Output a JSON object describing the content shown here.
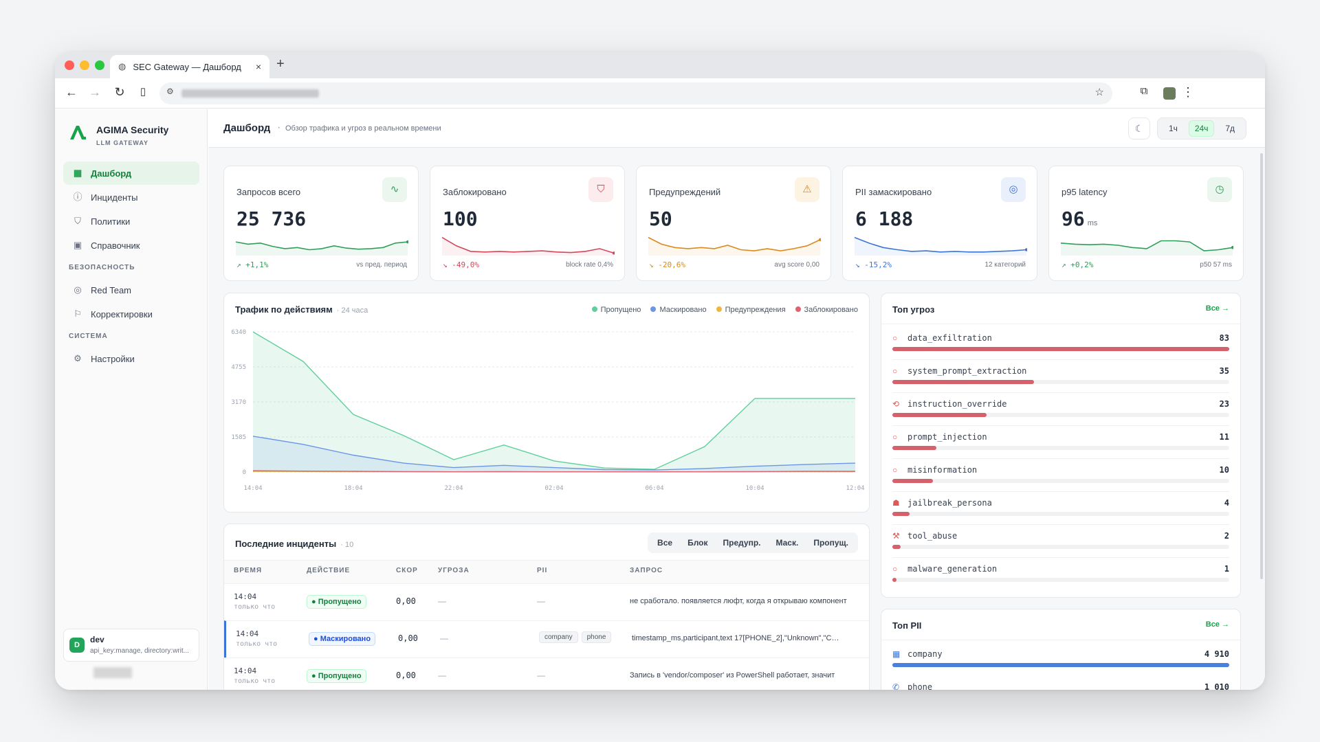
{
  "browser": {
    "tab_title": "SEC Gateway — Дашборд",
    "new_tab": "+",
    "close": "×"
  },
  "sidebar": {
    "brand": "AGIMA Security",
    "brand_sub": "LLM GATEWAY",
    "items": [
      {
        "label": "Дашборд",
        "icon": "grid-icon"
      },
      {
        "label": "Инциденты",
        "icon": "alert-circle-icon"
      },
      {
        "label": "Политики",
        "icon": "shield-icon"
      },
      {
        "label": "Справочник",
        "icon": "book-icon"
      }
    ],
    "section_security": "БЕЗОПАСНОСТЬ",
    "security_items": [
      {
        "label": "Red Team",
        "icon": "target-icon"
      },
      {
        "label": "Корректировки",
        "icon": "flag-icon"
      }
    ],
    "section_system": "СИСТЕМА",
    "system_items": [
      {
        "label": "Настройки",
        "icon": "gear-icon"
      }
    ],
    "user": {
      "avatar": "D",
      "name": "dev",
      "scopes": "api_key:manage, directory:writ..."
    }
  },
  "header": {
    "title": "Дашборд",
    "separator": "·",
    "subtitle": "Обзор трафика и угроз в реальном времени",
    "ranges": [
      "1ч",
      "24ч",
      "7д"
    ],
    "active_range": "24ч"
  },
  "kpis": [
    {
      "label": "Запросов всего",
      "value": "25 736",
      "unit": "",
      "delta": "↗ +1,1%",
      "note": "vs пред. период",
      "color": "#2f9e58",
      "icon": "activity-icon",
      "glyph": "∿",
      "icon_bg": "#eaf6ee",
      "trend": [
        62,
        58,
        60,
        54,
        50,
        52,
        48,
        50,
        55,
        51,
        49,
        50,
        52,
        60,
        62
      ]
    },
    {
      "label": "Заблокировано",
      "value": "100",
      "unit": "",
      "delta": "↘ -49,0%",
      "note": "block rate 0,4%",
      "color": "#d2485a",
      "icon": "shield-off-icon",
      "glyph": "⛉",
      "icon_bg": "#fdecee",
      "trend": [
        70,
        55,
        45,
        44,
        45,
        44,
        45,
        46,
        44,
        43,
        45,
        50,
        42
      ]
    },
    {
      "label": "Предупреждений",
      "value": "50",
      "unit": "",
      "delta": "↘ -20,6%",
      "note": "avg score 0,00",
      "color": "#d98a1a",
      "icon": "warning-icon",
      "glyph": "⚠",
      "icon_bg": "#fdf3e3",
      "trend": [
        70,
        58,
        52,
        50,
        52,
        50,
        56,
        48,
        46,
        50,
        46,
        50,
        55,
        66
      ]
    },
    {
      "label": "PII замаскировано",
      "value": "6 188",
      "unit": "",
      "delta": "↘ -15,2%",
      "note": "12 категорий",
      "color": "#3b74d6",
      "icon": "eye-off-icon",
      "glyph": "◎",
      "icon_bg": "#e9f0fb",
      "trend": [
        70,
        60,
        52,
        48,
        45,
        46,
        44,
        45,
        44,
        44,
        45,
        46,
        48
      ]
    },
    {
      "label": "p95 latency",
      "value": "96",
      "unit": "ms",
      "delta": "↗ +0,2%",
      "note": "p50 57 ms",
      "color": "#2f9e58",
      "icon": "timer-icon",
      "glyph": "◷",
      "icon_bg": "#eaf6ee",
      "trend": [
        60,
        58,
        57,
        58,
        56,
        52,
        50,
        64,
        64,
        62,
        46,
        48,
        52
      ]
    }
  ],
  "traffic": {
    "title": "Трафик по действиям",
    "period": "· 24 часа",
    "legend": [
      {
        "label": "Пропущено",
        "color": "#5fcf9b"
      },
      {
        "label": "Маскировано",
        "color": "#6d95e6"
      },
      {
        "label": "Предупреждения",
        "color": "#f0b53d"
      },
      {
        "label": "Заблокировано",
        "color": "#e0626e"
      }
    ]
  },
  "chart_data": {
    "type": "area",
    "title": "Трафик по действиям",
    "subtitle": "24 часа",
    "x": [
      "14:04",
      "16:04",
      "18:04",
      "20:04",
      "22:04",
      "00:04",
      "02:04",
      "04:04",
      "06:04",
      "08:04",
      "10:04",
      "12:04",
      "13:04"
    ],
    "x_tick_labels": [
      "14:04",
      "18:04",
      "22:04",
      "02:04",
      "06:04",
      "10:04",
      "12:04"
    ],
    "y_tick_labels": [
      "6340",
      "4755",
      "3170",
      "1585",
      "0"
    ],
    "ylim": [
      0,
      6340
    ],
    "grid": true,
    "legend_position": "top-right",
    "series": [
      {
        "name": "Пропущено",
        "color": "#5fcf9b",
        "values": [
          6340,
          5000,
          2600,
          1650,
          560,
          1220,
          500,
          180,
          120,
          1150,
          3330,
          3330,
          3330
        ]
      },
      {
        "name": "Маскировано",
        "color": "#6d95e6",
        "values": [
          1620,
          1250,
          760,
          400,
          200,
          300,
          200,
          110,
          90,
          160,
          260,
          340,
          400
        ]
      },
      {
        "name": "Предупреждения",
        "color": "#f0b53d",
        "values": [
          30,
          25,
          20,
          15,
          10,
          12,
          10,
          8,
          8,
          10,
          15,
          20,
          20
        ]
      },
      {
        "name": "Заблокировано",
        "color": "#e0626e",
        "values": [
          60,
          40,
          30,
          20,
          10,
          15,
          10,
          8,
          8,
          10,
          20,
          30,
          30
        ]
      }
    ]
  },
  "threats": {
    "title": "Топ угроз",
    "all_link": "Все →",
    "items": [
      {
        "name": "data_exfiltration",
        "count": 83,
        "pct": 1.0,
        "icon": "circle-icon",
        "glyph": "○"
      },
      {
        "name": "system_prompt_extraction",
        "count": 35,
        "pct": 0.42,
        "icon": "circle-icon",
        "glyph": "○"
      },
      {
        "name": "instruction_override",
        "count": 23,
        "pct": 0.28,
        "icon": "refresh-icon",
        "glyph": "⟲"
      },
      {
        "name": "prompt_injection",
        "count": 11,
        "pct": 0.13,
        "icon": "circle-icon",
        "glyph": "○"
      },
      {
        "name": "misinformation",
        "count": 10,
        "pct": 0.12,
        "icon": "circle-icon",
        "glyph": "○"
      },
      {
        "name": "jailbreak_persona",
        "count": 4,
        "pct": 0.05,
        "icon": "mask-icon",
        "glyph": "☗"
      },
      {
        "name": "tool_abuse",
        "count": 2,
        "pct": 0.025,
        "icon": "wrench-icon",
        "glyph": "⚒"
      },
      {
        "name": "malware_generation",
        "count": 1,
        "pct": 0.012,
        "icon": "circle-icon",
        "glyph": "○"
      }
    ]
  },
  "pii": {
    "title": "Топ PII",
    "all_link": "Все →",
    "items": [
      {
        "name": "company",
        "count": "4 910",
        "pct": 1.0,
        "icon": "building-icon",
        "glyph": "▦"
      },
      {
        "name": "phone",
        "count": "1 010",
        "pct": 0.2,
        "icon": "phone-icon",
        "glyph": "✆"
      }
    ]
  },
  "incidents": {
    "title": "Последние инциденты",
    "count": "· 10",
    "filters": [
      "Все",
      "Блок",
      "Предупр.",
      "Маск.",
      "Пропущ."
    ],
    "columns": [
      "ВРЕМЯ",
      "ДЕЙСТВИЕ",
      "СКОР",
      "УГРОЗА",
      "PII",
      "ЗАПРОС"
    ],
    "rows": [
      {
        "time": "14:04",
        "ago": "только что",
        "action": "● Пропущено",
        "kind": "g",
        "score": "0,00",
        "threat": "—",
        "pii": [],
        "pii_empty": "—",
        "query": "не сработало. появляется люфт, когда я открываю компонент"
      },
      {
        "time": "14:04",
        "ago": "только что",
        "action": "● Маскировано",
        "kind": "b",
        "score": "0,00",
        "threat": "—",
        "pii": [
          "company",
          "phone"
        ],
        "pii_empty": "",
        "query": "timestamp_ms,participant,text 17[PHONE_2],\"Unknown\",\"C…"
      },
      {
        "time": "14:04",
        "ago": "только что",
        "action": "● Пропущено",
        "kind": "g",
        "score": "0,00",
        "threat": "—",
        "pii": [],
        "pii_empty": "—",
        "query": "Запись в 'vendor/composer' из PowerShell работает, значит"
      }
    ]
  }
}
